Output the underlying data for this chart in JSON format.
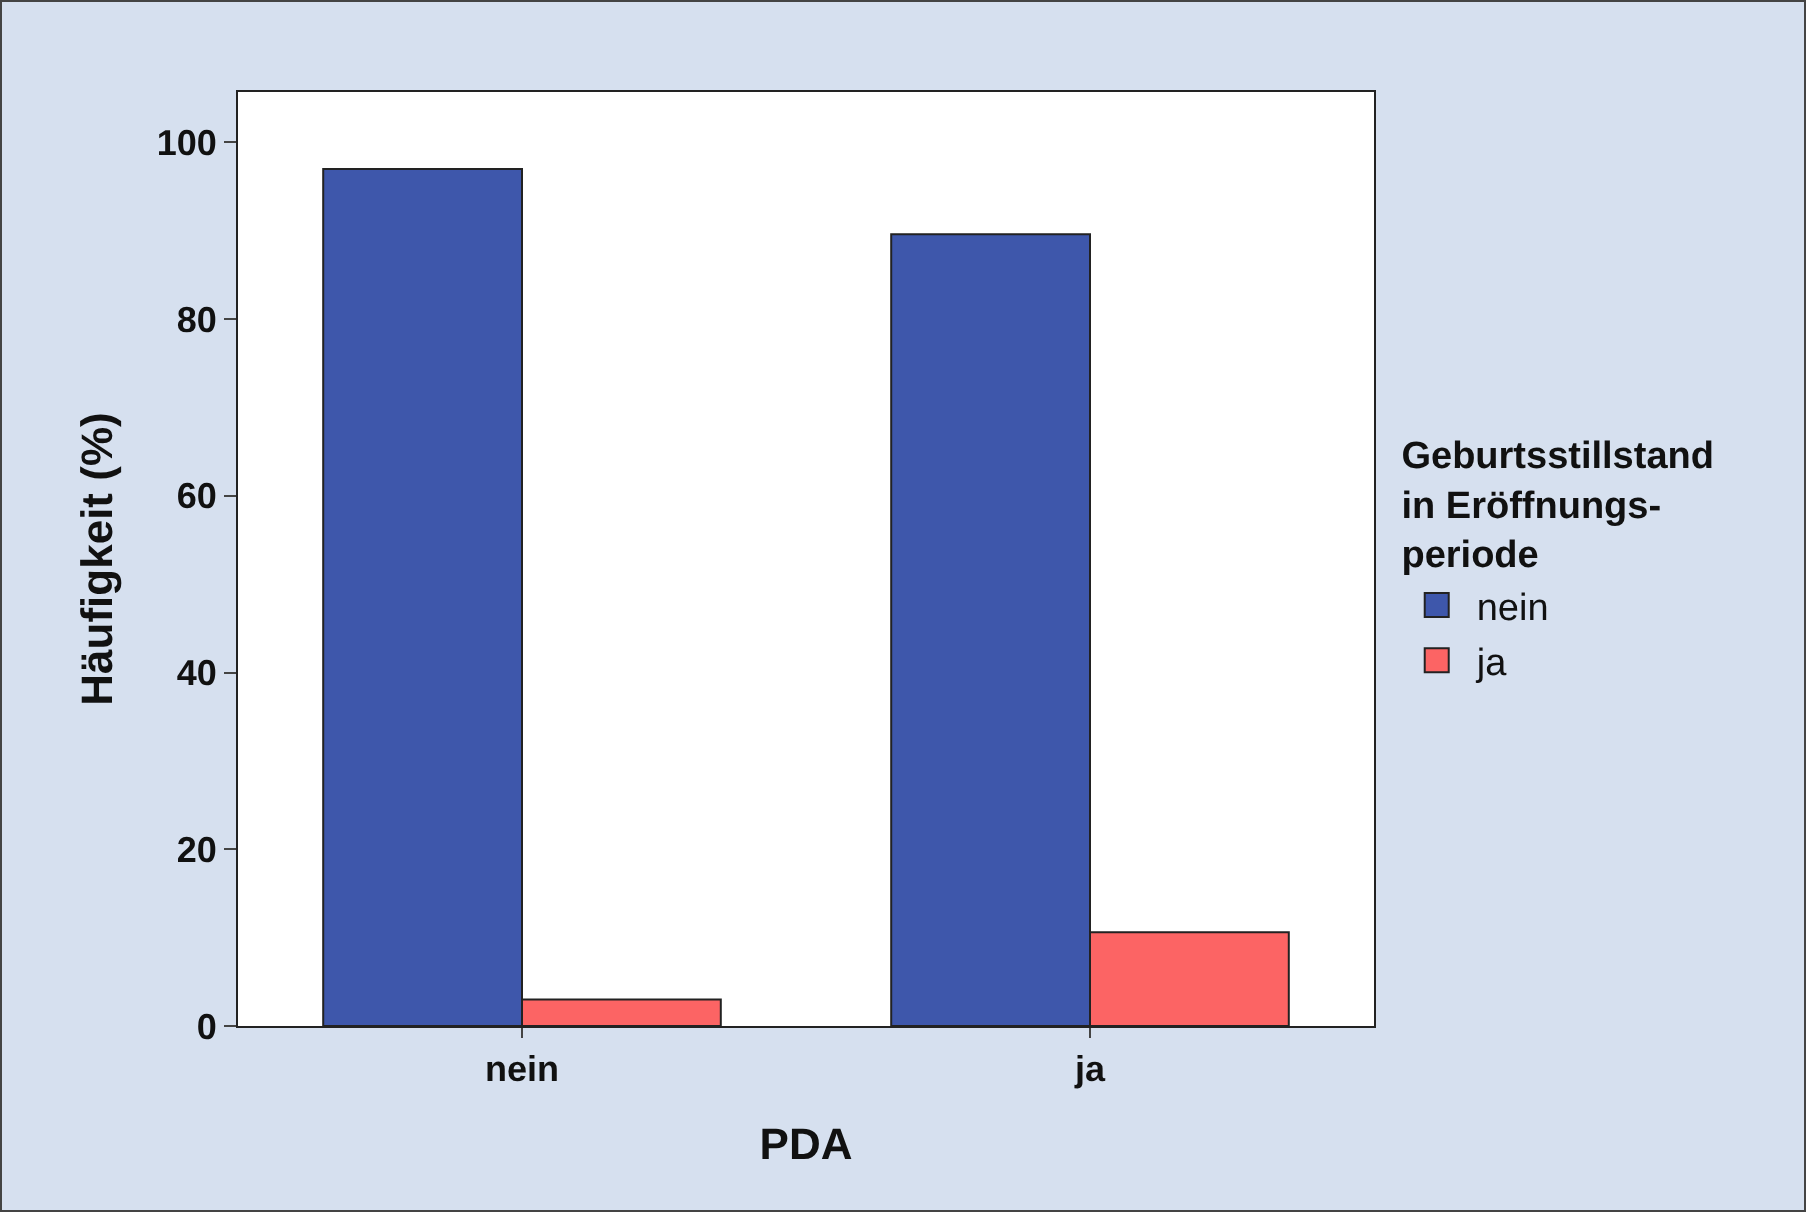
{
  "chart_data": {
    "type": "bar",
    "xlabel": "PDA",
    "ylabel": "Häufigkeit (%)",
    "legend_title": "Geburtsstillstand\nin Eröffnungs-\nperiode",
    "categories": [
      "nein",
      "ja"
    ],
    "series": [
      {
        "name": "nein",
        "color": "#3e57ab",
        "values": [
          97,
          89.6
        ]
      },
      {
        "name": "ja",
        "color": "#fc6464",
        "values": [
          3,
          10.6
        ]
      }
    ],
    "ylim": [
      0,
      105.7
    ],
    "yticks": [
      0,
      20,
      40,
      60,
      80,
      100
    ],
    "grid": false,
    "legend": "right"
  }
}
